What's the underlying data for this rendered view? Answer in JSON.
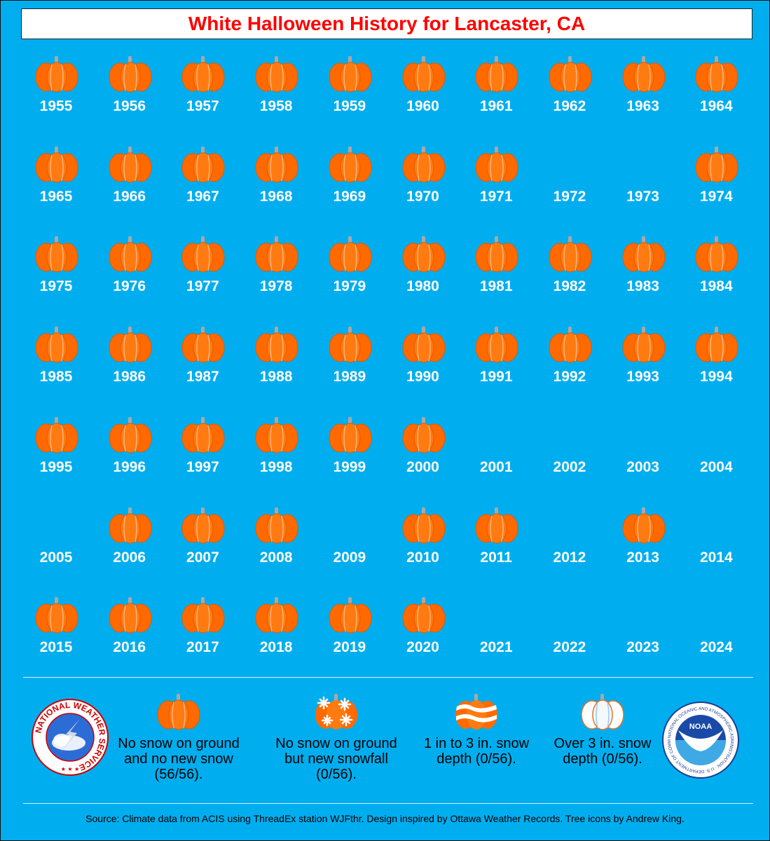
{
  "title": "White Halloween History for Lancaster, CA",
  "chart_data": {
    "type": "table",
    "title": "White Halloween History for Lancaster, CA",
    "columns": 10,
    "years": [
      "1955",
      "1956",
      "1957",
      "1958",
      "1959",
      "1960",
      "1961",
      "1962",
      "1963",
      "1964",
      "1965",
      "1966",
      "1967",
      "1968",
      "1969",
      "1970",
      "1971",
      "1972",
      "1973",
      "1974",
      "1975",
      "1976",
      "1977",
      "1978",
      "1979",
      "1980",
      "1981",
      "1982",
      "1983",
      "1984",
      "1985",
      "1986",
      "1987",
      "1988",
      "1989",
      "1990",
      "1991",
      "1992",
      "1993",
      "1994",
      "1995",
      "1996",
      "1997",
      "1998",
      "1999",
      "2000",
      "2001",
      "2002",
      "2003",
      "2004",
      "2005",
      "2006",
      "2007",
      "2008",
      "2009",
      "2010",
      "2011",
      "2012",
      "2013",
      "2014",
      "2015",
      "2016",
      "2017",
      "2018",
      "2019",
      "2020",
      "2021",
      "2022",
      "2023",
      "2024"
    ],
    "categories": [
      "no_snow",
      "no_snow",
      "no_snow",
      "no_snow",
      "no_snow",
      "no_snow",
      "no_snow",
      "no_snow",
      "no_snow",
      "no_snow",
      "no_snow",
      "no_snow",
      "no_snow",
      "no_snow",
      "no_snow",
      "no_snow",
      "no_snow",
      "missing",
      "missing",
      "no_snow",
      "no_snow",
      "no_snow",
      "no_snow",
      "no_snow",
      "no_snow",
      "no_snow",
      "no_snow",
      "no_snow",
      "no_snow",
      "no_snow",
      "no_snow",
      "no_snow",
      "no_snow",
      "no_snow",
      "no_snow",
      "no_snow",
      "no_snow",
      "no_snow",
      "no_snow",
      "no_snow",
      "no_snow",
      "no_snow",
      "no_snow",
      "no_snow",
      "no_snow",
      "no_snow",
      "missing",
      "missing",
      "missing",
      "missing",
      "missing",
      "no_snow",
      "no_snow",
      "no_snow",
      "missing",
      "no_snow",
      "no_snow",
      "missing",
      "no_snow",
      "missing",
      "no_snow",
      "no_snow",
      "no_snow",
      "no_snow",
      "no_snow",
      "no_snow",
      "missing",
      "missing",
      "missing",
      "missing"
    ]
  },
  "legend": [
    {
      "icon": "pumpkin-icon",
      "label": "No snow on ground and no new snow (56/56)."
    },
    {
      "icon": "snowflake-pumpkin-icon",
      "label": "No snow on ground but new snowfall (0/56)."
    },
    {
      "icon": "snow-striped-pumpkin-icon",
      "label": "1 in to 3 in. snow depth (0/56)."
    },
    {
      "icon": "white-pumpkin-icon",
      "label": "Over 3 in. snow depth (0/56)."
    }
  ],
  "logos": {
    "nws": {
      "icon": "nws-logo",
      "text": "NATIONAL WEATHER SERVICE"
    },
    "noaa": {
      "icon": "noaa-logo",
      "text": "NOAA",
      "ring_text": "NATIONAL OCEANIC AND ATMOSPHERIC ADMINISTRATION · U.S. DEPARTMENT OF COMMERCE"
    }
  },
  "source": "Source: Climate data from ACIS using ThreadEx station WJFthr. Design inspired by Ottawa Weather Records. Tree icons by Andrew King.",
  "colors": {
    "background": "#00AEEF",
    "title": "#FF0000",
    "pumpkin": "#FF6A00",
    "stem": "#A8A8A8"
  }
}
